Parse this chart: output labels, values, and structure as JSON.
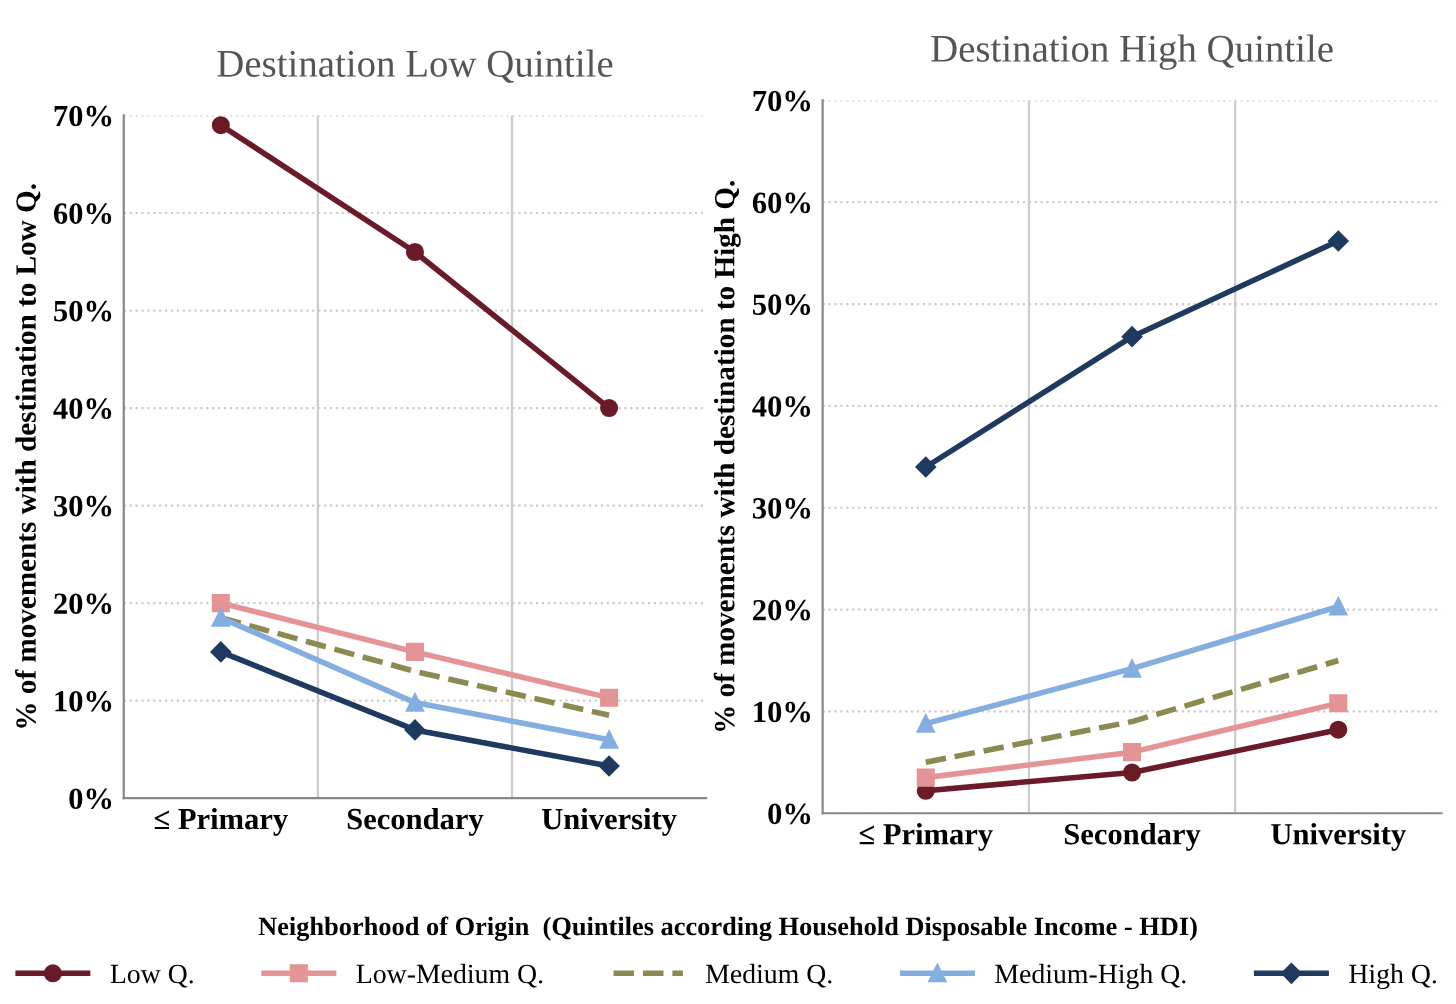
{
  "chart_data": [
    {
      "type": "line",
      "title": "Destination Low Quintile",
      "ylabel": "% of movements with destination to Low Q.",
      "xlabel": "Neighborhood of Origin  (Quintiles according Household Disposable Income - HDI)",
      "categories": [
        "≤ Primary",
        "Secondary",
        "University"
      ],
      "ylim": [
        0,
        70
      ],
      "yticks": [
        {
          "value": 0,
          "label": "0%"
        },
        {
          "value": 10,
          "label": "10%"
        },
        {
          "value": 20,
          "label": "20%"
        },
        {
          "value": 30,
          "label": "30%"
        },
        {
          "value": 40,
          "label": "40%"
        },
        {
          "value": 50,
          "label": "50%"
        },
        {
          "value": 60,
          "label": "60%"
        },
        {
          "value": 70,
          "label": "70%"
        }
      ],
      "grid": true,
      "legend": "bottom",
      "series": [
        {
          "name": "Low Q.",
          "color": "#6b1a28",
          "marker": "circle",
          "line_style": "solid",
          "values": [
            69,
            56,
            40
          ]
        },
        {
          "name": "Low-Medium Q.",
          "color": "#e59496",
          "marker": "square",
          "line_style": "solid",
          "values": [
            20,
            15,
            10.3
          ]
        },
        {
          "name": "Medium Q.",
          "color": "#8c8a50",
          "marker": "none",
          "line_style": "dashed",
          "values": [
            18.5,
            13,
            8.5
          ]
        },
        {
          "name": "Medium-High Q.",
          "color": "#84aee0",
          "marker": "triangle",
          "line_style": "solid",
          "values": [
            18.5,
            9.8,
            6
          ]
        },
        {
          "name": "High Q.",
          "color": "#1f3a5f",
          "marker": "diamond",
          "line_style": "solid",
          "values": [
            15,
            7,
            3.3
          ]
        }
      ]
    },
    {
      "type": "line",
      "title": "Destination High Quintile",
      "ylabel": "% of movements with destination to High Q.",
      "categories": [
        "≤ Primary",
        "Secondary",
        "University"
      ],
      "ylim": [
        0,
        70
      ],
      "yticks": [
        {
          "value": 0,
          "label": "0%"
        },
        {
          "value": 10,
          "label": "10%"
        },
        {
          "value": 20,
          "label": "20%"
        },
        {
          "value": 30,
          "label": "30%"
        },
        {
          "value": 40,
          "label": "40%"
        },
        {
          "value": 50,
          "label": "50%"
        },
        {
          "value": 60,
          "label": "60%"
        },
        {
          "value": 70,
          "label": "70%"
        }
      ],
      "grid": true,
      "series": [
        {
          "color": "#6b1a28",
          "marker": "circle",
          "line_style": "solid",
          "values": [
            2.2,
            4,
            8.2
          ]
        },
        {
          "color": "#e59496",
          "marker": "square",
          "line_style": "solid",
          "values": [
            3.5,
            6,
            10.8
          ]
        },
        {
          "color": "#8c8a50",
          "marker": "none",
          "line_style": "dashed",
          "values": [
            5,
            9,
            15
          ]
        },
        {
          "color": "#84aee0",
          "marker": "triangle",
          "line_style": "solid",
          "values": [
            8.8,
            14.2,
            20.3
          ]
        },
        {
          "color": "#1f3a5f",
          "marker": "diamond",
          "line_style": "solid",
          "values": [
            34,
            46.8,
            56.2
          ]
        }
      ]
    }
  ]
}
